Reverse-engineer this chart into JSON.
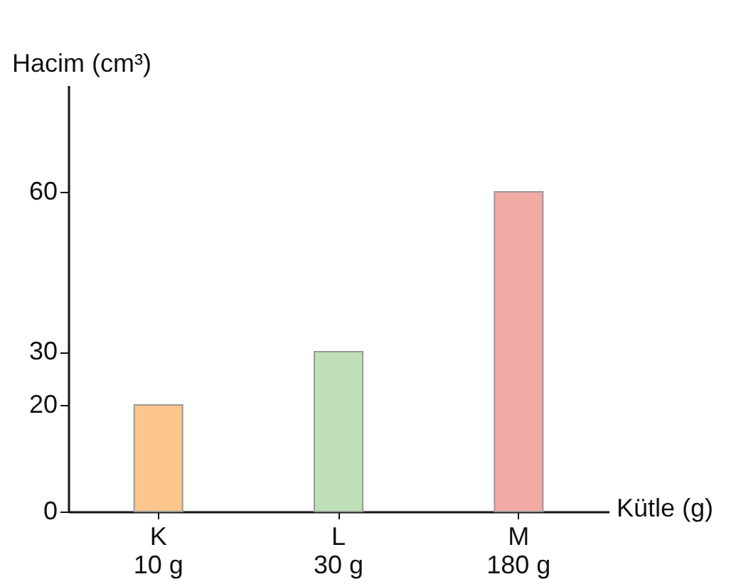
{
  "chart_data": {
    "type": "bar",
    "xlabel": "Kütle (g)",
    "ylabel": "Hacim (cm³)",
    "categories": [
      "K\n10 g",
      "L\n30 g",
      "M\n180 g"
    ],
    "values": [
      20,
      30,
      60
    ],
    "colors": [
      "#fbc58c",
      "#bfe0b6",
      "#f2aaa5"
    ],
    "ylim": [
      0,
      80
    ],
    "yticks": [
      0,
      20,
      30,
      60
    ],
    "grid": false
  }
}
